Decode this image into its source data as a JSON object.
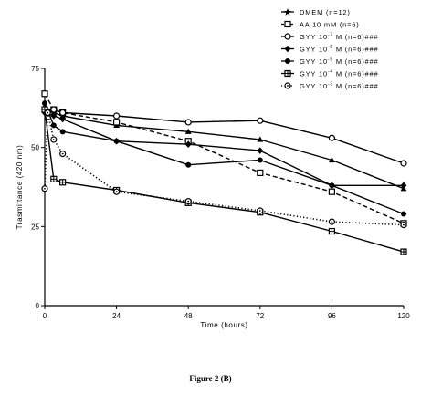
{
  "caption": "Figure 2 (B)",
  "chart_data": {
    "type": "line",
    "xlabel": "Time (hours)",
    "ylabel": "Trasmittance (420 nm)",
    "xlim": [
      0,
      120
    ],
    "ylim": [
      0,
      75
    ],
    "x_ticks": [
      0,
      24,
      48,
      72,
      96,
      120
    ],
    "y_ticks": [
      0,
      25,
      50,
      75
    ],
    "legend_position": "top-right",
    "series": [
      {
        "name": "DMEM (n=12)",
        "marker": "triangle-filled",
        "line": "solid",
        "marker_on_legend": "star",
        "x": [
          0,
          3,
          6,
          24,
          48,
          72,
          96,
          120
        ],
        "y": [
          63,
          61,
          60,
          57,
          55,
          52.5,
          46,
          37
        ]
      },
      {
        "name": "AA 10 mM (n=6)",
        "marker": "square-open",
        "line": "dashed",
        "x": [
          0,
          3,
          6,
          24,
          48,
          72,
          96,
          120
        ],
        "y": [
          67,
          62,
          61,
          58,
          52,
          42,
          36,
          26
        ]
      },
      {
        "name": "GYY 10^-7 M (n=6)###",
        "marker": "circle-open",
        "line": "solid",
        "x": [
          0,
          3,
          6,
          24,
          48,
          72,
          96,
          120
        ],
        "y": [
          62,
          62,
          61,
          60,
          58,
          58.5,
          53,
          45
        ]
      },
      {
        "name": "GYY 10^-6 M (n=6)###",
        "marker": "diamond-filled",
        "line": "solid",
        "x": [
          0,
          3,
          6,
          24,
          48,
          72,
          96,
          120
        ],
        "y": [
          61,
          60,
          59,
          52,
          51,
          49,
          38,
          38
        ]
      },
      {
        "name": "GYY 10^-5 M (n=6)###",
        "marker": "circle-filled",
        "line": "solid",
        "x": [
          0,
          3,
          6,
          24,
          48,
          72,
          96,
          120
        ],
        "y": [
          64,
          57,
          55,
          52,
          44.5,
          46,
          38,
          29
        ]
      },
      {
        "name": "GYY 10^-4 M (n=6)###",
        "marker": "square-hatched",
        "line": "solid",
        "x": [
          0,
          3,
          6,
          24,
          48,
          72,
          96,
          120
        ],
        "y": [
          62,
          40,
          39,
          36.5,
          32.5,
          29.5,
          23.5,
          17
        ]
      },
      {
        "name": "GYY 10^-3 M (n=6)###",
        "marker": "circle-dot",
        "line": "dotted",
        "x": [
          0,
          1,
          3,
          6,
          24,
          48,
          72,
          96,
          120
        ],
        "y": [
          37,
          61,
          52.5,
          48,
          36,
          33,
          30,
          26.5,
          25.5
        ]
      }
    ]
  },
  "legend": [
    {
      "pre": "DMEM (n=12)",
      "exp": "",
      "post": ""
    },
    {
      "pre": "AA 10 mM (n=6)",
      "exp": "",
      "post": ""
    },
    {
      "pre": "GYY 10",
      "exp": "-7",
      "post": " M (n=6)###"
    },
    {
      "pre": "GYY 10",
      "exp": "-6",
      "post": " M (n=6)###"
    },
    {
      "pre": "GYY 10",
      "exp": "-5",
      "post": " M (n=6)###"
    },
    {
      "pre": "GYY 10",
      "exp": "-4",
      "post": " M (n=6)###"
    },
    {
      "pre": "GYY 10",
      "exp": "-3",
      "post": " M (n=6)###"
    }
  ]
}
